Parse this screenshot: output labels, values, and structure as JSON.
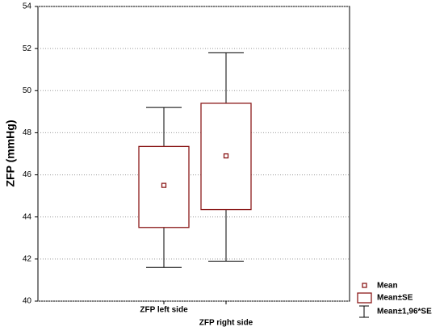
{
  "chart_data": {
    "type": "box",
    "y_label": "ZFP (mmHg)",
    "categories": [
      "ZFP left side",
      "ZFP right side"
    ],
    "mean": [
      45.5,
      46.9
    ],
    "se_low": [
      43.5,
      44.35
    ],
    "se_high": [
      47.35,
      49.4
    ],
    "ci_low": [
      41.6,
      41.9
    ],
    "ci_high": [
      49.2,
      51.8
    ],
    "color": "#8b1a1a",
    "legend_labels": [
      "Mean",
      "Mean±SE",
      "Mean±1,96*SE"
    ],
    "ylim": [
      40,
      54
    ],
    "yticks": [
      40,
      42,
      44,
      46,
      48,
      50,
      52,
      54
    ],
    "grid": true
  }
}
